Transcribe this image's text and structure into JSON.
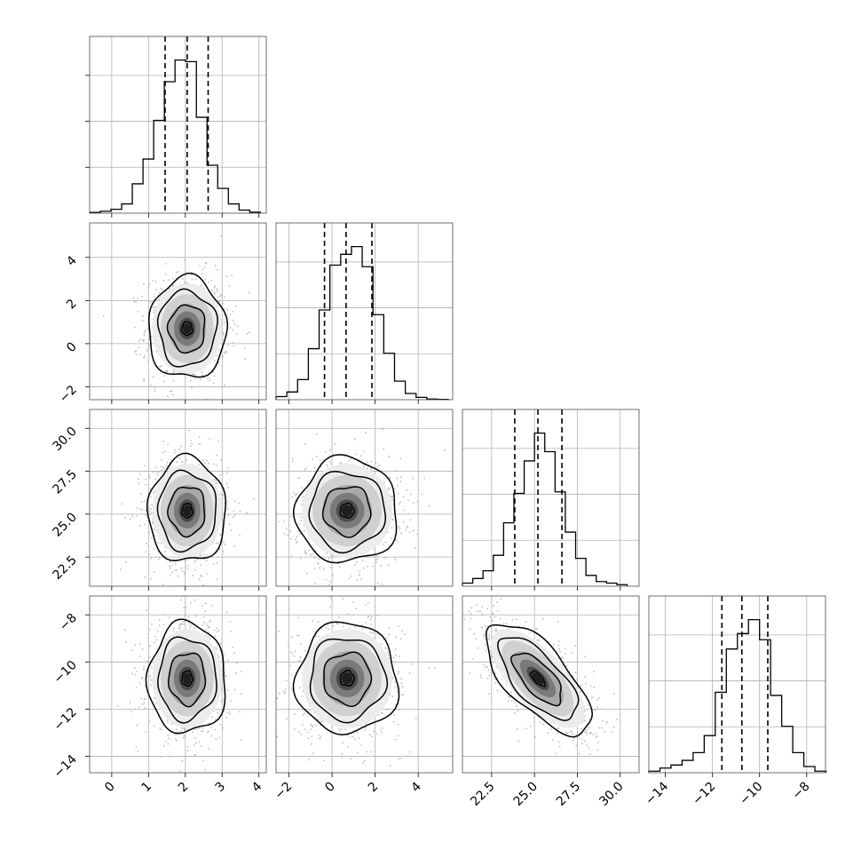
{
  "chart_data": {
    "type": "corner",
    "title": "",
    "parameters": [
      {
        "label": "",
        "range": [
          -0.6,
          4.2
        ],
        "ticks": [
          0,
          1,
          2,
          3,
          4
        ],
        "tick_labels": [
          "0",
          "1",
          "2",
          "3",
          "4"
        ],
        "quantiles": [
          1.45,
          2.05,
          2.62
        ],
        "mean": 2.05,
        "sd": 0.45
      },
      {
        "label": "",
        "range": [
          -2.6,
          5.6
        ],
        "ticks": [
          -2,
          0,
          2,
          4
        ],
        "tick_labels": [
          "−2",
          "0",
          "2",
          "4"
        ],
        "quantiles": [
          -0.35,
          0.65,
          1.85
        ],
        "mean": 0.7,
        "sd": 1.0
      },
      {
        "label": "",
        "range": [
          20.8,
          31.1
        ],
        "ticks": [
          22.5,
          25.0,
          27.5,
          30.0
        ],
        "tick_labels": [
          "22.5",
          "25.0",
          "27.5",
          "30.0"
        ],
        "quantiles": [
          23.85,
          25.2,
          26.6
        ],
        "mean": 25.2,
        "sd": 1.3
      },
      {
        "label": "",
        "range": [
          -14.7,
          -7.2
        ],
        "ticks": [
          -14,
          -12,
          -10,
          -8
        ],
        "tick_labels": [
          "−14",
          "−12",
          "−10",
          "−8"
        ],
        "quantiles": [
          -11.6,
          -10.75,
          -9.65
        ],
        "mean": -10.7,
        "sd": 1.0
      }
    ],
    "histograms": [
      {
        "param": 0,
        "bin_edges": [
          -0.6,
          -0.31,
          -0.02,
          0.27,
          0.56,
          0.85,
          1.14,
          1.43,
          1.72,
          2.01,
          2.3,
          2.59,
          2.88,
          3.17,
          3.46,
          3.75,
          4.04
        ],
        "counts": [
          0.005,
          0.012,
          0.025,
          0.06,
          0.19,
          0.35,
          0.6,
          0.85,
          0.99,
          0.98,
          0.62,
          0.31,
          0.16,
          0.06,
          0.02,
          0.006
        ]
      },
      {
        "param": 1,
        "bin_edges": [
          -2.6,
          -2.1,
          -1.6,
          -1.1,
          -0.6,
          -0.1,
          0.4,
          0.9,
          1.4,
          1.9,
          2.4,
          2.9,
          3.4,
          3.9,
          4.4,
          4.9,
          5.4
        ],
        "counts": [
          0.02,
          0.05,
          0.13,
          0.33,
          0.58,
          0.87,
          0.94,
          0.99,
          0.86,
          0.55,
          0.3,
          0.12,
          0.04,
          0.015,
          0.004,
          0.002
        ]
      },
      {
        "param": 2,
        "bin_edges": [
          20.8,
          21.4,
          22.0,
          22.6,
          23.2,
          23.8,
          24.4,
          25.0,
          25.6,
          26.2,
          26.8,
          27.4,
          28.0,
          28.6,
          29.2,
          29.8,
          30.4
        ],
        "counts": [
          0.02,
          0.05,
          0.1,
          0.2,
          0.41,
          0.6,
          0.81,
          0.99,
          0.87,
          0.61,
          0.35,
          0.18,
          0.07,
          0.03,
          0.02,
          0.01
        ]
      },
      {
        "param": 3,
        "bin_edges": [
          -14.7,
          -14.23,
          -13.76,
          -13.29,
          -12.82,
          -12.35,
          -11.88,
          -11.41,
          -10.94,
          -10.47,
          -10.0,
          -9.53,
          -9.06,
          -8.59,
          -8.12,
          -7.65,
          -7.18
        ],
        "counts": [
          0.01,
          0.03,
          0.05,
          0.08,
          0.13,
          0.24,
          0.52,
          0.8,
          0.9,
          0.99,
          0.86,
          0.5,
          0.3,
          0.13,
          0.04,
          0.01
        ]
      }
    ],
    "correlations": {
      "1-0": 0.0,
      "2-0": 0.0,
      "2-1": 0.0,
      "3-0": 0.0,
      "3-1": 0.0,
      "3-2": -0.68
    },
    "contour_levels": [
      0.39,
      0.86,
      0.99
    ],
    "grid": true,
    "legend": "none"
  }
}
